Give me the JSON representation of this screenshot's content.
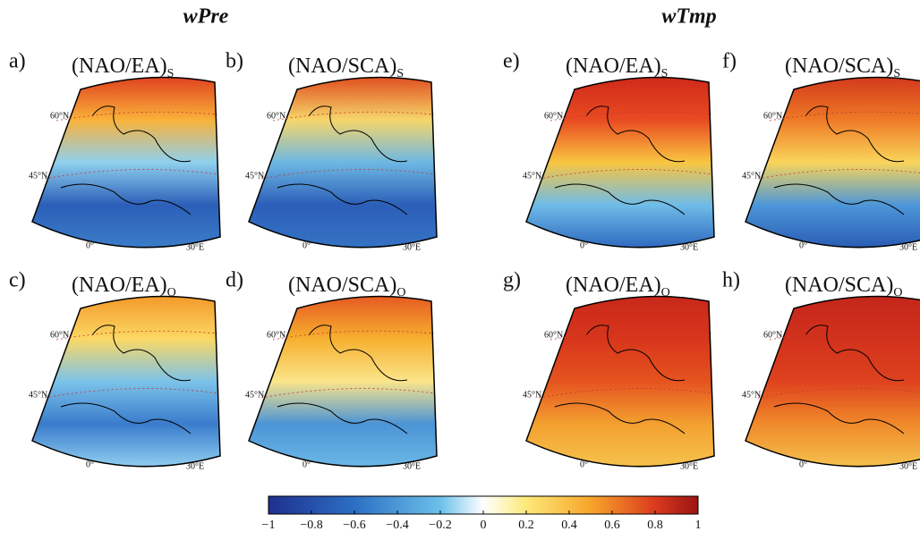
{
  "columns": [
    "wPre",
    "wTmp"
  ],
  "panels": [
    {
      "letter": "a)",
      "label": "(NAO/EA)",
      "subscript": "S"
    },
    {
      "letter": "b)",
      "label": "(NAO/SCA)",
      "subscript": "S"
    },
    {
      "letter": "c)",
      "label": "(NAO/EA)",
      "subscript": "O"
    },
    {
      "letter": "d)",
      "label": "(NAO/SCA)",
      "subscript": "O"
    },
    {
      "letter": "e)",
      "label": "(NAO/EA)",
      "subscript": "S"
    },
    {
      "letter": "f)",
      "label": "(NAO/SCA)",
      "subscript": "S"
    },
    {
      "letter": "g)",
      "label": "(NAO/EA)",
      "subscript": "O"
    },
    {
      "letter": "h)",
      "label": "(NAO/SCA)",
      "subscript": "O"
    }
  ],
  "graticule": {
    "lat_high": "60°N",
    "lat_low": "45°N",
    "lon_left": "0°",
    "lon_right": "30°E"
  },
  "colorbar": {
    "ticks": [
      "−1",
      "−0.8",
      "−0.6",
      "−0.4",
      "−0.2",
      "0",
      "0.2",
      "0.4",
      "0.6",
      "0.8",
      "1"
    ]
  }
}
